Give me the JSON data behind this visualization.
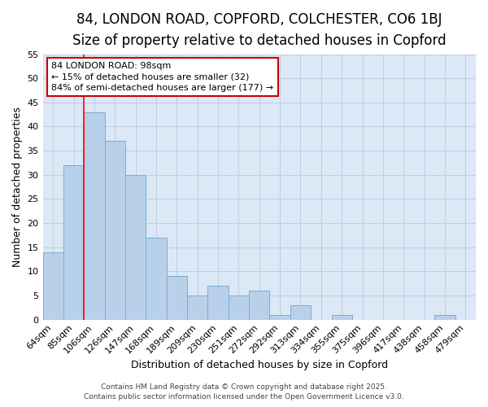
{
  "title_line1": "84, LONDON ROAD, COPFORD, COLCHESTER, CO6 1BJ",
  "title_line2": "Size of property relative to detached houses in Copford",
  "xlabel": "Distribution of detached houses by size in Copford",
  "ylabel": "Number of detached properties",
  "categories": [
    "64sqm",
    "85sqm",
    "106sqm",
    "126sqm",
    "147sqm",
    "168sqm",
    "189sqm",
    "209sqm",
    "230sqm",
    "251sqm",
    "272sqm",
    "292sqm",
    "313sqm",
    "334sqm",
    "355sqm",
    "375sqm",
    "396sqm",
    "417sqm",
    "438sqm",
    "458sqm",
    "479sqm"
  ],
  "values": [
    14,
    32,
    43,
    37,
    30,
    17,
    9,
    5,
    7,
    5,
    6,
    1,
    3,
    0,
    1,
    0,
    0,
    0,
    0,
    1,
    0
  ],
  "bar_color": "#b8d0ea",
  "bar_edge_color": "#7aadd4",
  "red_line_index": 2,
  "ylim": [
    0,
    55
  ],
  "yticks": [
    0,
    5,
    10,
    15,
    20,
    25,
    30,
    35,
    40,
    45,
    50,
    55
  ],
  "annotation_line1": "84 LONDON ROAD: 98sqm",
  "annotation_line2": "← 15% of detached houses are smaller (32)",
  "annotation_line3": "84% of semi-detached houses are larger (177) →",
  "annotation_box_color": "#ffffff",
  "annotation_box_edge_color": "#cc0000",
  "figure_bg_color": "#ffffff",
  "plot_bg_color": "#dce8f5",
  "grid_color": "#b8cfe8",
  "footer_line1": "Contains HM Land Registry data © Crown copyright and database right 2025.",
  "footer_line2": "Contains public sector information licensed under the Open Government Licence v3.0.",
  "title_fontsize": 12,
  "subtitle_fontsize": 10,
  "tick_fontsize": 8,
  "ylabel_fontsize": 9,
  "xlabel_fontsize": 9,
  "annotation_fontsize": 8,
  "footer_fontsize": 6.5
}
